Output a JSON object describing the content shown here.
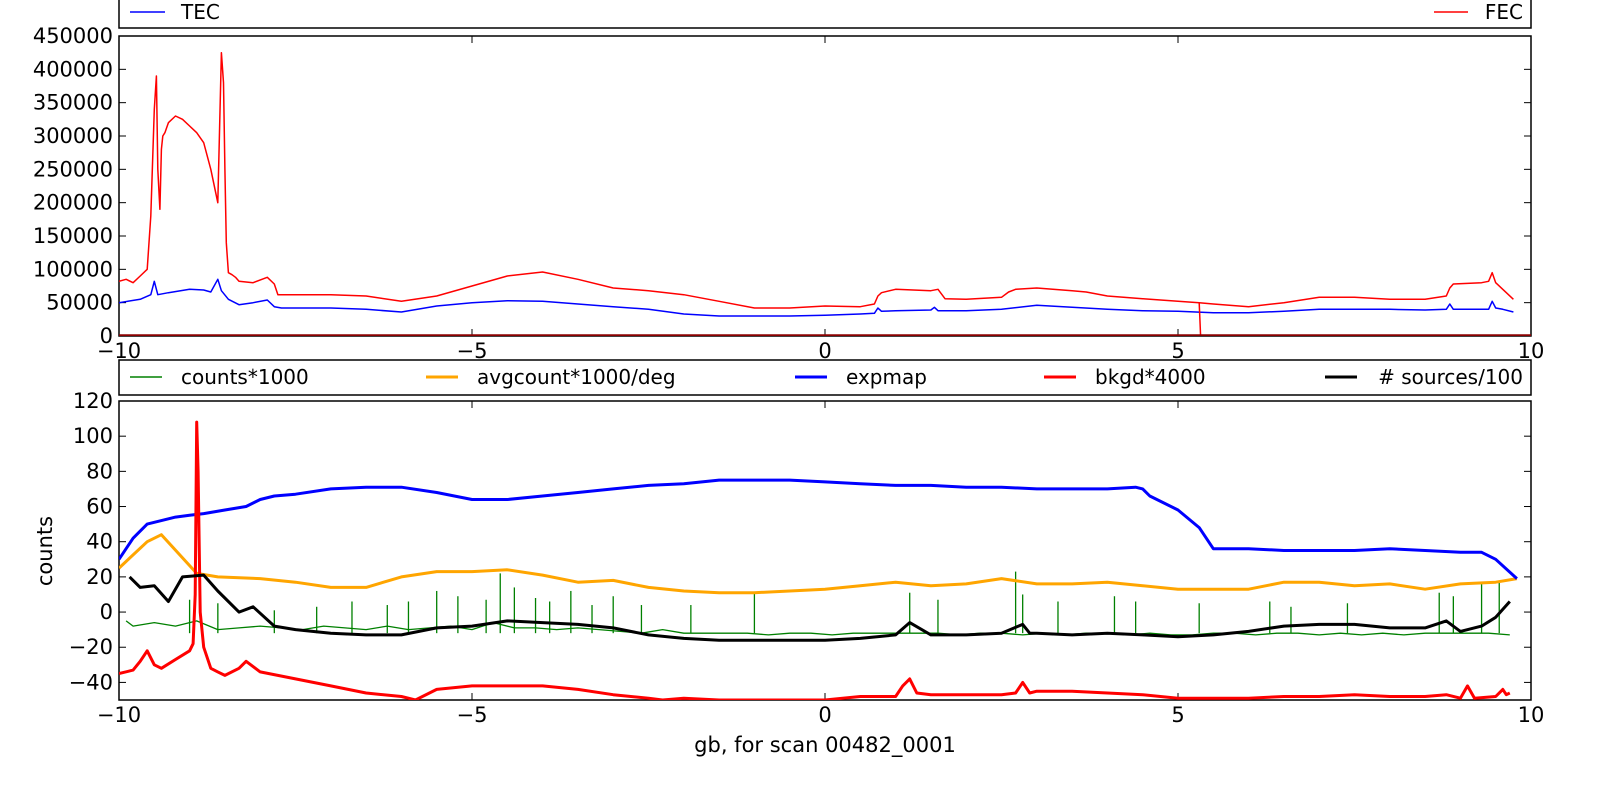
{
  "chart_data": [
    {
      "type": "line",
      "title": "",
      "xlabel": "",
      "ylabel": "",
      "xlim": [
        -10,
        10
      ],
      "ylim": [
        0,
        450000
      ],
      "xticks": [
        "−10",
        "−5",
        "0",
        "5",
        "10"
      ],
      "yticks": [
        "0",
        "50000",
        "100000",
        "150000",
        "200000",
        "250000",
        "300000",
        "350000",
        "400000",
        "450000"
      ],
      "grid": false,
      "legend_position": "top strip above axes",
      "series": [
        {
          "name": "TEC",
          "color": "#0000ff",
          "x": [
            -10,
            -9.7,
            -9.55,
            -9.5,
            -9.45,
            -9.3,
            -9.0,
            -8.8,
            -8.7,
            -8.6,
            -8.55,
            -8.45,
            -8.3,
            -8.1,
            -7.9,
            -7.8,
            -7.7,
            -7.5,
            -7.0,
            -6.5,
            -6.0,
            -5.5,
            -5.0,
            -4.5,
            -4.0,
            -3.5,
            -3.0,
            -2.5,
            -2.0,
            -1.5,
            -1.0,
            -0.5,
            0.0,
            0.5,
            0.7,
            0.75,
            0.8,
            1.0,
            1.5,
            1.55,
            1.6,
            2.0,
            2.5,
            3.0,
            3.5,
            4.0,
            4.5,
            5.0,
            5.5,
            6.0,
            6.5,
            7.0,
            7.5,
            8.0,
            8.5,
            8.8,
            8.85,
            8.9,
            9.2,
            9.4,
            9.45,
            9.5,
            9.6,
            9.75
          ],
          "values": [
            50000,
            55000,
            62000,
            82000,
            62000,
            65000,
            70000,
            69000,
            66000,
            85000,
            68000,
            55000,
            47000,
            50000,
            54000,
            44000,
            42000,
            42000,
            42000,
            40000,
            36000,
            45000,
            50000,
            53000,
            52000,
            48000,
            44000,
            40000,
            33000,
            30000,
            30000,
            30000,
            31000,
            33000,
            34000,
            42000,
            37000,
            38000,
            39000,
            43000,
            38000,
            38000,
            40000,
            46000,
            43000,
            40000,
            38000,
            37000,
            35000,
            35000,
            37000,
            40000,
            40000,
            40000,
            39000,
            40000,
            48000,
            40000,
            40000,
            40000,
            52000,
            42000,
            40000,
            36000
          ]
        },
        {
          "name": "FEC",
          "color": "#ff0000",
          "x": [
            -10,
            -9.9,
            -9.8,
            -9.7,
            -9.6,
            -9.55,
            -9.5,
            -9.47,
            -9.45,
            -9.42,
            -9.4,
            -9.38,
            -9.35,
            -9.3,
            -9.2,
            -9.1,
            -9.0,
            -8.9,
            -8.8,
            -8.7,
            -8.6,
            -8.55,
            -8.52,
            -8.5,
            -8.48,
            -8.45,
            -8.4,
            -8.35,
            -8.3,
            -8.1,
            -7.9,
            -7.8,
            -7.75,
            -7.5,
            -7.0,
            -6.5,
            -6.0,
            -5.5,
            -5.0,
            -4.5,
            -4.0,
            -3.5,
            -3.0,
            -2.5,
            -2.0,
            -1.5,
            -1.0,
            -0.5,
            0.0,
            0.5,
            0.7,
            0.75,
            0.8,
            1.0,
            1.5,
            1.6,
            1.7,
            2.0,
            2.5,
            2.6,
            2.7,
            3.0,
            3.5,
            3.7,
            4.0,
            4.5,
            5.0,
            5.3,
            5.5,
            6.0,
            6.5,
            7.0,
            7.5,
            8.0,
            8.5,
            8.8,
            8.85,
            8.9,
            9.3,
            9.4,
            9.45,
            9.5,
            9.75
          ],
          "values": [
            82000,
            85000,
            80000,
            90000,
            100000,
            180000,
            340000,
            390000,
            250000,
            190000,
            280000,
            300000,
            305000,
            320000,
            330000,
            325000,
            315000,
            305000,
            290000,
            250000,
            200000,
            425000,
            380000,
            250000,
            140000,
            95000,
            92000,
            88000,
            82000,
            80000,
            88000,
            78000,
            62000,
            62000,
            62000,
            60000,
            52000,
            60000,
            75000,
            90000,
            96000,
            85000,
            72000,
            68000,
            62000,
            52000,
            42000,
            42000,
            45000,
            44000,
            48000,
            60000,
            65000,
            70000,
            68000,
            70000,
            56000,
            55000,
            58000,
            66000,
            70000,
            72000,
            68000,
            66000,
            60000,
            56000,
            52000,
            50000,
            48000,
            44000,
            50000,
            58000,
            58000,
            55000,
            55000,
            60000,
            72000,
            78000,
            80000,
            82000,
            95000,
            80000,
            55000
          ]
        },
        {
          "name": "",
          "color": "#ff0000",
          "x": [
            5.3,
            5.32
          ],
          "values": [
            50000,
            0
          ]
        },
        {
          "name": "",
          "color": "#8b0000",
          "x": [
            -10,
            10
          ],
          "values": [
            1000,
            1000
          ]
        }
      ]
    },
    {
      "type": "line",
      "title": "",
      "xlabel": "gb, for scan 00482_0001",
      "ylabel": "counts",
      "xlim": [
        -10,
        10
      ],
      "ylim": [
        -50,
        120
      ],
      "xticks": [
        "−10",
        "−5",
        "0",
        "5",
        "10"
      ],
      "yticks": [
        "−40",
        "−20",
        "0",
        "20",
        "40",
        "60",
        "80",
        "100",
        "120"
      ],
      "grid": false,
      "legend_position": "top strip above axes",
      "series": [
        {
          "name": "counts*1000",
          "color": "#008000",
          "x": [
            -9.9,
            -9.8,
            -9.5,
            -9.2,
            -8.9,
            -8.6,
            -8.3,
            -8.0,
            -7.7,
            -7.4,
            -7.1,
            -6.8,
            -6.5,
            -6.2,
            -5.9,
            -5.6,
            -5.3,
            -5.0,
            -4.7,
            -4.4,
            -4.1,
            -3.8,
            -3.5,
            -3.2,
            -2.9,
            -2.6,
            -2.3,
            -2.0,
            -1.7,
            -1.4,
            -1.1,
            -0.8,
            -0.5,
            -0.2,
            0.1,
            0.4,
            0.7,
            1.0,
            1.3,
            1.6,
            1.9,
            2.2,
            2.5,
            2.8,
            3.1,
            3.4,
            3.7,
            4.0,
            4.3,
            4.6,
            4.9,
            5.2,
            5.5,
            5.8,
            6.1,
            6.4,
            6.7,
            7.0,
            7.3,
            7.6,
            7.9,
            8.2,
            8.5,
            8.8,
            9.1,
            9.4,
            9.7
          ],
          "values": [
            -5,
            -8,
            -6,
            -8,
            -5,
            -10,
            -9,
            -8,
            -9,
            -10,
            -8,
            -9,
            -10,
            -8,
            -10,
            -9,
            -8,
            -10,
            -6,
            -9,
            -9,
            -10,
            -9,
            -10,
            -11,
            -12,
            -10,
            -12,
            -12,
            -12,
            -12,
            -13,
            -12,
            -12,
            -13,
            -12,
            -12,
            -12,
            -12,
            -12,
            -13,
            -12,
            -12,
            -13,
            -12,
            -13,
            -12,
            -12,
            -13,
            -12,
            -13,
            -13,
            -12,
            -12,
            -13,
            -12,
            -12,
            -13,
            -12,
            -13,
            -12,
            -13,
            -12,
            -12,
            -12,
            -12,
            -13
          ],
          "spikes_x": [
            -9.0,
            -8.6,
            -7.8,
            -7.2,
            -6.7,
            -6.2,
            -5.9,
            -5.5,
            -5.2,
            -4.8,
            -4.6,
            -4.4,
            -4.1,
            -3.9,
            -3.6,
            -3.3,
            -3.0,
            -2.6,
            -1.9,
            -1.0,
            1.2,
            1.6,
            2.7,
            2.8,
            3.3,
            4.1,
            4.4,
            5.3,
            6.3,
            6.6,
            7.4,
            8.7,
            8.9,
            9.3,
            9.55
          ],
          "spikes_values": [
            7,
            5,
            1,
            3,
            6,
            4,
            6,
            12,
            9,
            7,
            22,
            14,
            8,
            6,
            12,
            4,
            9,
            4,
            4,
            11,
            11,
            7,
            23,
            10,
            6,
            9,
            6,
            5,
            6,
            3,
            5,
            11,
            9,
            16,
            17
          ]
        },
        {
          "name": "avgcount*1000/deg",
          "color": "#ffa500",
          "x": [
            -10,
            -9.6,
            -9.4,
            -8.9,
            -8.6,
            -8.0,
            -7.5,
            -7.0,
            -6.5,
            -6.0,
            -5.5,
            -5.0,
            -4.5,
            -4.0,
            -3.5,
            -3.0,
            -2.5,
            -2.0,
            -1.5,
            -1.0,
            -0.5,
            0.0,
            0.5,
            1.0,
            1.5,
            2.0,
            2.5,
            3.0,
            3.5,
            4.0,
            4.5,
            5.0,
            5.5,
            6.0,
            6.5,
            7.0,
            7.5,
            8.0,
            8.5,
            9.0,
            9.5,
            9.8
          ],
          "values": [
            25,
            40,
            44,
            22,
            20,
            19,
            17,
            14,
            14,
            20,
            23,
            23,
            24,
            21,
            17,
            18,
            14,
            12,
            11,
            11,
            12,
            13,
            15,
            17,
            15,
            16,
            19,
            16,
            16,
            17,
            15,
            13,
            13,
            13,
            17,
            17,
            15,
            16,
            13,
            16,
            17,
            19
          ]
        },
        {
          "name": "expmap",
          "color": "#0000ff",
          "x": [
            -10,
            -9.8,
            -9.6,
            -9.4,
            -9.2,
            -9.0,
            -8.8,
            -8.5,
            -8.2,
            -8.0,
            -7.8,
            -7.5,
            -7.0,
            -6.5,
            -6.0,
            -5.5,
            -5.0,
            -4.5,
            -4.0,
            -3.5,
            -3.0,
            -2.5,
            -2.0,
            -1.5,
            -1.0,
            -0.5,
            0.0,
            0.5,
            1.0,
            1.5,
            2.0,
            2.5,
            3.0,
            3.5,
            4.0,
            4.4,
            4.5,
            4.6,
            5.0,
            5.3,
            5.5,
            5.6,
            6.0,
            6.5,
            7.0,
            7.5,
            8.0,
            8.5,
            9.0,
            9.3,
            9.5,
            9.8
          ],
          "values": [
            30,
            42,
            50,
            52,
            54,
            55,
            56,
            58,
            60,
            64,
            66,
            67,
            70,
            71,
            71,
            68,
            64,
            64,
            66,
            68,
            70,
            72,
            73,
            75,
            75,
            75,
            74,
            73,
            72,
            72,
            71,
            71,
            70,
            70,
            70,
            71,
            70,
            66,
            58,
            48,
            36,
            36,
            36,
            35,
            35,
            35,
            36,
            35,
            34,
            34,
            30,
            19
          ]
        },
        {
          "name": "bkgd*4000",
          "color": "#ff0000",
          "x": [
            -10,
            -9.8,
            -9.7,
            -9.6,
            -9.5,
            -9.4,
            -9.2,
            -9.0,
            -8.95,
            -8.92,
            -8.9,
            -8.88,
            -8.85,
            -8.8,
            -8.7,
            -8.6,
            -8.5,
            -8.3,
            -8.2,
            -8.0,
            -7.5,
            -7.0,
            -6.5,
            -6.0,
            -5.8,
            -5.5,
            -5.0,
            -4.5,
            -4.0,
            -3.5,
            -3.0,
            -2.5,
            -2.3,
            -2.0,
            -1.5,
            -1.0,
            -0.5,
            0.0,
            0.5,
            1.0,
            1.1,
            1.2,
            1.3,
            1.5,
            2.0,
            2.5,
            2.7,
            2.8,
            2.9,
            3.0,
            3.5,
            4.0,
            4.5,
            5.0,
            5.5,
            6.0,
            6.5,
            7.0,
            7.5,
            8.0,
            8.5,
            8.8,
            9.0,
            9.1,
            9.2,
            9.5,
            9.6,
            9.65,
            9.7
          ],
          "values": [
            -35,
            -33,
            -28,
            -22,
            -30,
            -32,
            -27,
            -22,
            -18,
            10,
            108,
            80,
            0,
            -20,
            -32,
            -34,
            -36,
            -32,
            -28,
            -34,
            -38,
            -42,
            -46,
            -48,
            -50,
            -44,
            -42,
            -42,
            -42,
            -44,
            -47,
            -49,
            -50,
            -49,
            -50,
            -50,
            -50,
            -50,
            -48,
            -48,
            -42,
            -38,
            -46,
            -47,
            -47,
            -47,
            -46,
            -40,
            -46,
            -45,
            -45,
            -46,
            -47,
            -49,
            -49,
            -49,
            -48,
            -48,
            -47,
            -48,
            -48,
            -47,
            -49,
            -42,
            -49,
            -48,
            -44,
            -47,
            -46
          ]
        },
        {
          "name": "# sources/100",
          "color": "#000000",
          "x": [
            -9.85,
            -9.7,
            -9.5,
            -9.3,
            -9.1,
            -8.8,
            -8.6,
            -8.3,
            -8.1,
            -7.8,
            -7.5,
            -7.0,
            -6.5,
            -6.0,
            -5.5,
            -5.0,
            -4.5,
            -4.0,
            -3.5,
            -3.0,
            -2.5,
            -2.0,
            -1.5,
            -1.0,
            -0.5,
            0.0,
            0.5,
            1.0,
            1.2,
            1.5,
            2.0,
            2.5,
            2.8,
            2.9,
            3.0,
            3.5,
            4.0,
            4.5,
            5.0,
            5.5,
            6.0,
            6.5,
            7.0,
            7.5,
            8.0,
            8.5,
            8.8,
            9.0,
            9.3,
            9.5,
            9.7
          ],
          "values": [
            20,
            14,
            15,
            6,
            20,
            21,
            12,
            0,
            3,
            -8,
            -10,
            -12,
            -13,
            -13,
            -9,
            -8,
            -5,
            -6,
            -7,
            -9,
            -13,
            -15,
            -16,
            -16,
            -16,
            -16,
            -15,
            -13,
            -6,
            -13,
            -13,
            -12,
            -7,
            -12,
            -12,
            -13,
            -12,
            -13,
            -14,
            -13,
            -11,
            -8,
            -7,
            -7,
            -9,
            -9,
            -5,
            -11,
            -8,
            -3,
            6
          ]
        }
      ]
    }
  ]
}
